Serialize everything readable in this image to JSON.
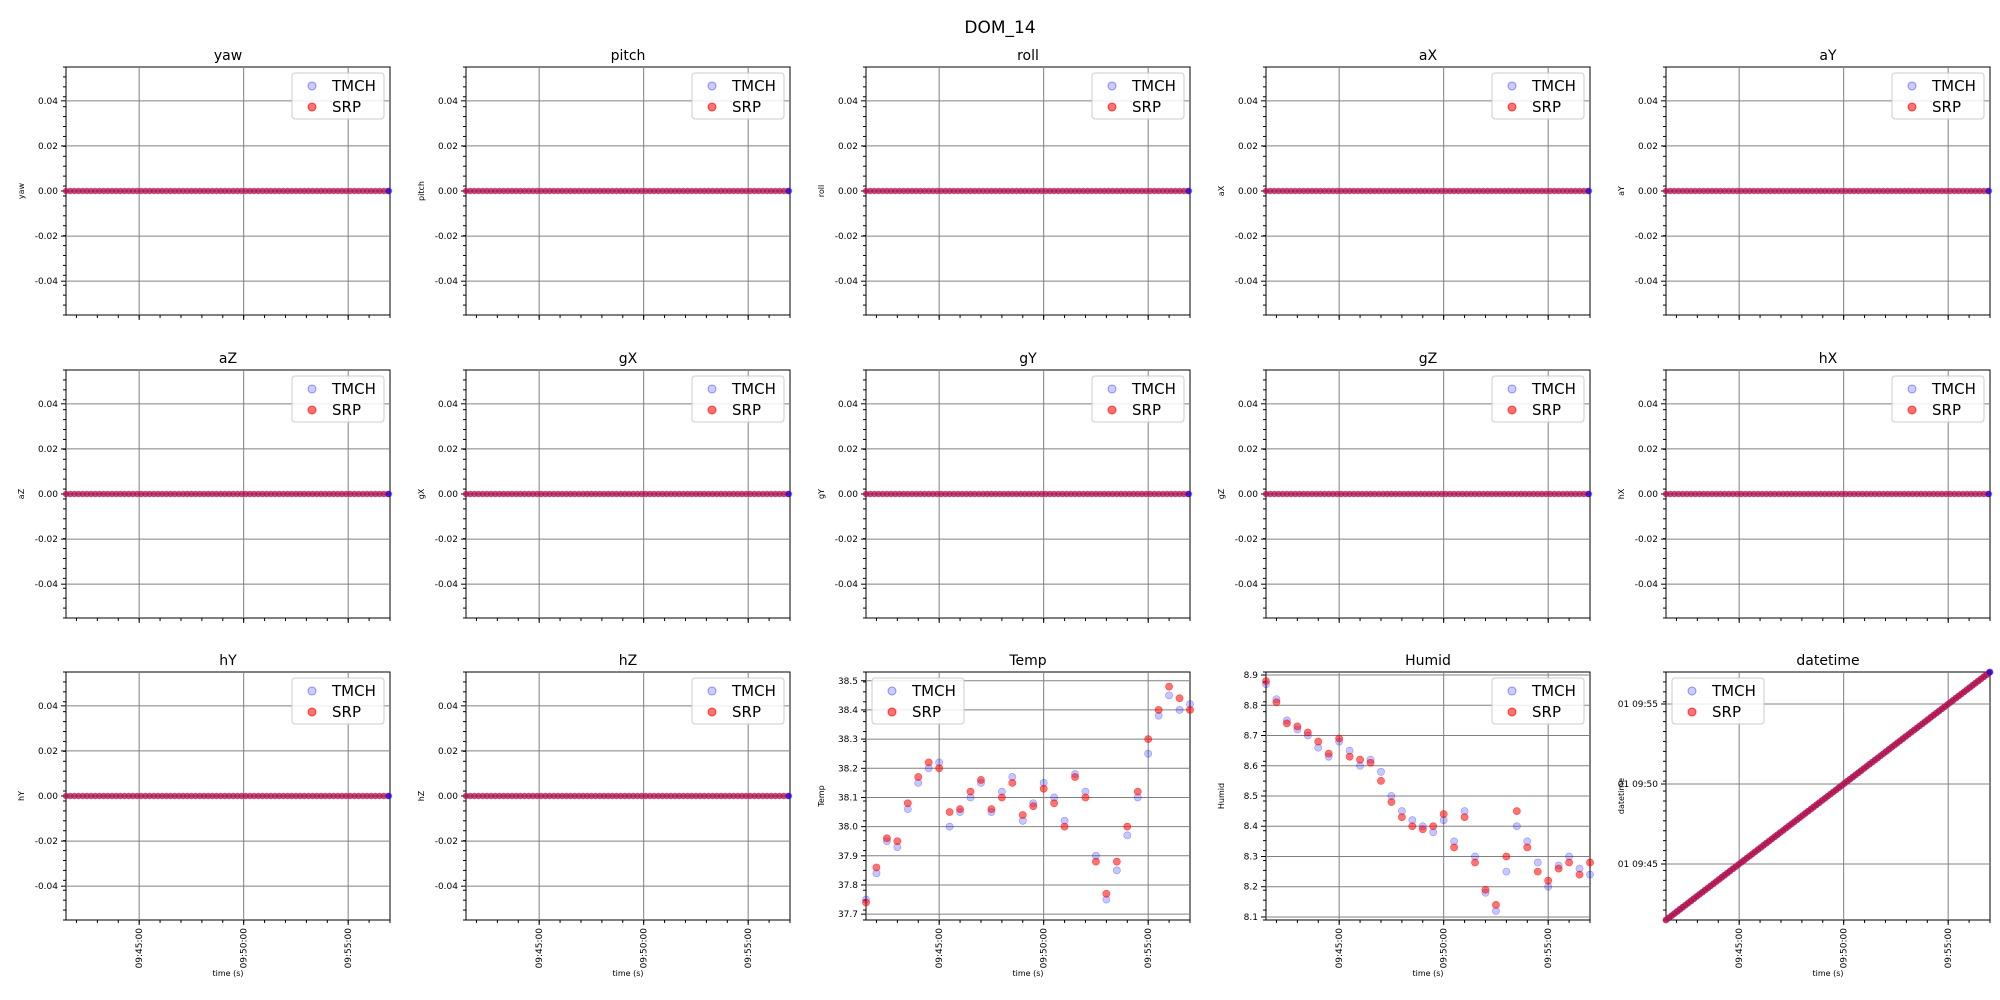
{
  "figure": {
    "title": "DOM_14"
  },
  "legend": {
    "tmch": "TMCH",
    "srp": "SRP"
  },
  "colors": {
    "tmch": "#0000ff",
    "srp": "#ff0000",
    "overlap": "#b01050",
    "grid": "#808080"
  },
  "time_axis": {
    "label": "time (s)",
    "start": "09:41:30",
    "end": "09:57:00",
    "ticks": [
      "09:45:00",
      "09:50:00",
      "09:55:00"
    ]
  },
  "chart_data": [
    {
      "type": "scatter",
      "title": "yaw",
      "ylabel": "yaw",
      "ylim": [
        -0.055,
        0.055
      ],
      "yticks": [
        "0.04",
        "0.02",
        "0.00",
        "-0.02",
        "-0.04"
      ],
      "constant": 0.0,
      "xlabel": "",
      "legend_position": "upper right"
    },
    {
      "type": "scatter",
      "title": "pitch",
      "ylabel": "pitch",
      "ylim": [
        -0.055,
        0.055
      ],
      "yticks": [
        "0.04",
        "0.02",
        "0.00",
        "-0.02",
        "-0.04"
      ],
      "constant": 0.0,
      "xlabel": "",
      "legend_position": "upper right"
    },
    {
      "type": "scatter",
      "title": "roll",
      "ylabel": "roll",
      "ylim": [
        -0.055,
        0.055
      ],
      "yticks": [
        "0.04",
        "0.02",
        "0.00",
        "-0.02",
        "-0.04"
      ],
      "constant": 0.0,
      "xlabel": "",
      "legend_position": "upper right"
    },
    {
      "type": "scatter",
      "title": "aX",
      "ylabel": "aX",
      "ylim": [
        -0.055,
        0.055
      ],
      "yticks": [
        "0.04",
        "0.02",
        "0.00",
        "-0.02",
        "-0.04"
      ],
      "constant": 0.0,
      "xlabel": "",
      "legend_position": "upper right"
    },
    {
      "type": "scatter",
      "title": "aY",
      "ylabel": "aY",
      "ylim": [
        -0.055,
        0.055
      ],
      "yticks": [
        "0.04",
        "0.02",
        "0.00",
        "-0.02",
        "-0.04"
      ],
      "constant": 0.0,
      "xlabel": "",
      "legend_position": "upper right"
    },
    {
      "type": "scatter",
      "title": "aZ",
      "ylabel": "aZ",
      "ylim": [
        -0.055,
        0.055
      ],
      "yticks": [
        "0.04",
        "0.02",
        "0.00",
        "-0.02",
        "-0.04"
      ],
      "constant": 0.0,
      "xlabel": "",
      "legend_position": "upper right"
    },
    {
      "type": "scatter",
      "title": "gX",
      "ylabel": "gX",
      "ylim": [
        -0.055,
        0.055
      ],
      "yticks": [
        "0.04",
        "0.02",
        "0.00",
        "-0.02",
        "-0.04"
      ],
      "constant": 0.0,
      "xlabel": "",
      "legend_position": "upper right"
    },
    {
      "type": "scatter",
      "title": "gY",
      "ylabel": "gY",
      "ylim": [
        -0.055,
        0.055
      ],
      "yticks": [
        "0.04",
        "0.02",
        "0.00",
        "-0.02",
        "-0.04"
      ],
      "constant": 0.0,
      "xlabel": "",
      "legend_position": "upper right"
    },
    {
      "type": "scatter",
      "title": "gZ",
      "ylabel": "gZ",
      "ylim": [
        -0.055,
        0.055
      ],
      "yticks": [
        "0.04",
        "0.02",
        "0.00",
        "-0.02",
        "-0.04"
      ],
      "constant": 0.0,
      "xlabel": "",
      "legend_position": "upper right"
    },
    {
      "type": "scatter",
      "title": "hX",
      "ylabel": "hX",
      "ylim": [
        -0.055,
        0.055
      ],
      "yticks": [
        "0.04",
        "0.02",
        "0.00",
        "-0.02",
        "-0.04"
      ],
      "constant": 0.0,
      "xlabel": "",
      "legend_position": "upper right"
    },
    {
      "type": "scatter",
      "title": "hY",
      "ylabel": "hY",
      "ylim": [
        -0.055,
        0.055
      ],
      "yticks": [
        "0.04",
        "0.02",
        "0.00",
        "-0.02",
        "-0.04"
      ],
      "constant": 0.0,
      "xlabel": "time (s)",
      "legend_position": "upper right"
    },
    {
      "type": "scatter",
      "title": "hZ",
      "ylabel": "hZ",
      "ylim": [
        -0.055,
        0.055
      ],
      "yticks": [
        "0.04",
        "0.02",
        "0.00",
        "-0.02",
        "-0.04"
      ],
      "constant": 0.0,
      "xlabel": "time (s)",
      "legend_position": "upper right"
    },
    {
      "type": "scatter",
      "title": "Temp",
      "ylabel": "Temp",
      "ylim": [
        37.68,
        38.53
      ],
      "yticks": [
        "38.5",
        "38.4",
        "38.3",
        "38.2",
        "38.1",
        "38.0",
        "37.9",
        "37.8",
        "37.7"
      ],
      "xlabel": "time (s)",
      "legend_position": "upper left",
      "series": [
        {
          "name": "TMCH",
          "x": [
            "09:41:30",
            "09:42:00",
            "09:42:30",
            "09:43:00",
            "09:43:30",
            "09:44:00",
            "09:44:30",
            "09:45:00",
            "09:45:30",
            "09:46:00",
            "09:46:30",
            "09:47:00",
            "09:47:30",
            "09:48:00",
            "09:48:30",
            "09:49:00",
            "09:49:30",
            "09:50:00",
            "09:50:30",
            "09:51:00",
            "09:51:30",
            "09:52:00",
            "09:52:30",
            "09:53:00",
            "09:53:30",
            "09:54:00",
            "09:54:30",
            "09:55:00",
            "09:55:30",
            "09:56:00",
            "09:56:30",
            "09:57:00"
          ],
          "y": [
            37.75,
            37.84,
            37.95,
            37.93,
            38.06,
            38.15,
            38.2,
            38.22,
            38.0,
            38.05,
            38.1,
            38.15,
            38.05,
            38.12,
            38.17,
            38.02,
            38.08,
            38.15,
            38.1,
            38.02,
            38.18,
            38.12,
            37.9,
            37.75,
            37.85,
            37.97,
            38.1,
            38.25,
            38.38,
            38.45,
            38.4,
            38.42
          ]
        },
        {
          "name": "SRP",
          "x": [
            "09:41:30",
            "09:42:00",
            "09:42:30",
            "09:43:00",
            "09:43:30",
            "09:44:00",
            "09:44:30",
            "09:45:00",
            "09:45:30",
            "09:46:00",
            "09:46:30",
            "09:47:00",
            "09:47:30",
            "09:48:00",
            "09:48:30",
            "09:49:00",
            "09:49:30",
            "09:50:00",
            "09:50:30",
            "09:51:00",
            "09:51:30",
            "09:52:00",
            "09:52:30",
            "09:53:00",
            "09:53:30",
            "09:54:00",
            "09:54:30",
            "09:55:00",
            "09:55:30",
            "09:56:00",
            "09:56:30",
            "09:57:00"
          ],
          "y": [
            37.74,
            37.86,
            37.96,
            37.95,
            38.08,
            38.17,
            38.22,
            38.2,
            38.05,
            38.06,
            38.12,
            38.16,
            38.06,
            38.1,
            38.15,
            38.04,
            38.07,
            38.13,
            38.08,
            38.0,
            38.17,
            38.1,
            37.88,
            37.77,
            37.88,
            38.0,
            38.12,
            38.3,
            38.4,
            38.48,
            38.44,
            38.4
          ]
        }
      ]
    },
    {
      "type": "scatter",
      "title": "Humid",
      "ylabel": "Humid",
      "ylim": [
        8.09,
        8.91
      ],
      "yticks": [
        "8.9",
        "8.8",
        "8.7",
        "8.6",
        "8.5",
        "8.4",
        "8.3",
        "8.2",
        "8.1"
      ],
      "xlabel": "time (s)",
      "legend_position": "upper right",
      "series": [
        {
          "name": "TMCH",
          "x": [
            "09:41:30",
            "09:42:00",
            "09:42:30",
            "09:43:00",
            "09:43:30",
            "09:44:00",
            "09:44:30",
            "09:45:00",
            "09:45:30",
            "09:46:00",
            "09:46:30",
            "09:47:00",
            "09:47:30",
            "09:48:00",
            "09:48:30",
            "09:49:00",
            "09:49:30",
            "09:50:00",
            "09:50:30",
            "09:51:00",
            "09:51:30",
            "09:52:00",
            "09:52:30",
            "09:53:00",
            "09:53:30",
            "09:54:00",
            "09:54:30",
            "09:55:00",
            "09:55:30",
            "09:56:00",
            "09:56:30",
            "09:57:00"
          ],
          "y": [
            8.87,
            8.82,
            8.75,
            8.72,
            8.7,
            8.66,
            8.63,
            8.68,
            8.65,
            8.6,
            8.62,
            8.58,
            8.5,
            8.45,
            8.42,
            8.4,
            8.38,
            8.42,
            8.35,
            8.45,
            8.3,
            8.18,
            8.12,
            8.25,
            8.4,
            8.35,
            8.28,
            8.2,
            8.27,
            8.3,
            8.26,
            8.24
          ]
        },
        {
          "name": "SRP",
          "x": [
            "09:41:30",
            "09:42:00",
            "09:42:30",
            "09:43:00",
            "09:43:30",
            "09:44:00",
            "09:44:30",
            "09:45:00",
            "09:45:30",
            "09:46:00",
            "09:46:30",
            "09:47:00",
            "09:47:30",
            "09:48:00",
            "09:48:30",
            "09:49:00",
            "09:49:30",
            "09:50:00",
            "09:50:30",
            "09:51:00",
            "09:51:30",
            "09:52:00",
            "09:52:30",
            "09:53:00",
            "09:53:30",
            "09:54:00",
            "09:54:30",
            "09:55:00",
            "09:55:30",
            "09:56:00",
            "09:56:30",
            "09:57:00"
          ],
          "y": [
            8.88,
            8.81,
            8.74,
            8.73,
            8.71,
            8.68,
            8.64,
            8.69,
            8.63,
            8.62,
            8.61,
            8.55,
            8.48,
            8.43,
            8.4,
            8.39,
            8.4,
            8.44,
            8.33,
            8.43,
            8.28,
            8.19,
            8.14,
            8.3,
            8.45,
            8.33,
            8.25,
            8.22,
            8.26,
            8.28,
            8.24,
            8.28
          ]
        }
      ]
    },
    {
      "type": "scatter",
      "title": "datetime",
      "ylabel": "datetime",
      "yscale": "time",
      "ylim": [
        "09:41:30",
        "09:57:00"
      ],
      "yticks": [
        "01 09:55",
        "01 09:50",
        "01 09:45"
      ],
      "xlabel": "time (s)",
      "legend_position": "upper left",
      "note_series": "datetime equals time",
      "series": [
        {
          "name": "TMCH"
        },
        {
          "name": "SRP"
        }
      ]
    }
  ]
}
